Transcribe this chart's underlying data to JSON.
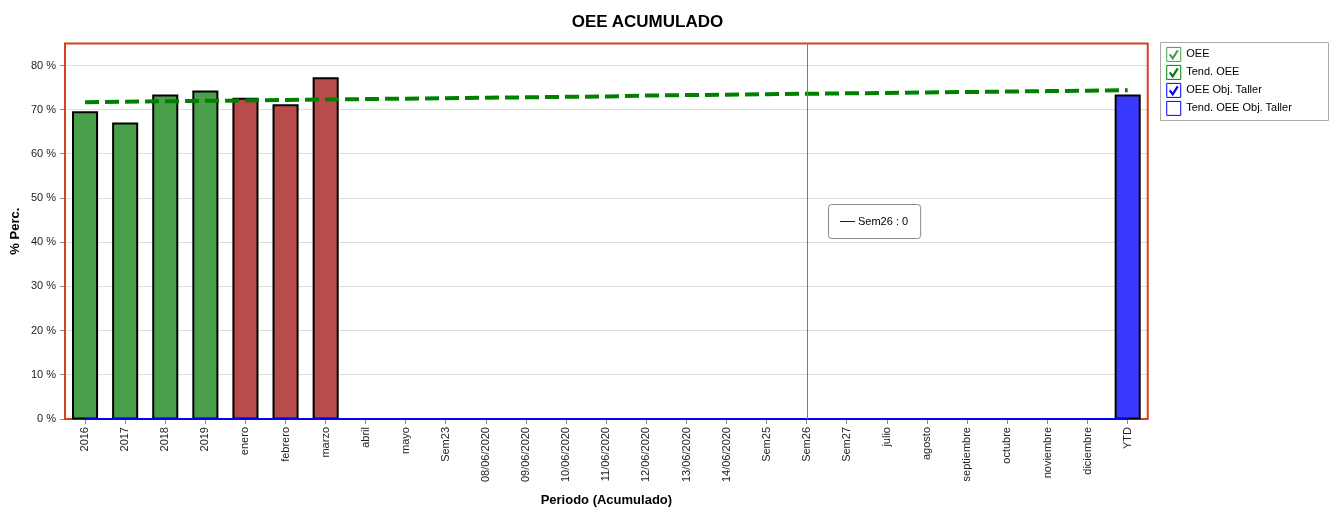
{
  "chart_data": {
    "type": "bar",
    "title": "OEE ACUMULADO",
    "xlabel": "Periodo (Acumulado)",
    "ylabel": "% Perc.",
    "categories": [
      "2016",
      "2017",
      "2018",
      "2019",
      "enero",
      "febrero",
      "marzo",
      "abril",
      "mayo",
      "Sem23",
      "08/06/2020",
      "09/06/2020",
      "10/06/2020",
      "11/06/2020",
      "12/06/2020",
      "13/06/2020",
      "14/06/2020",
      "Sem25",
      "Sem26",
      "Sem27",
      "julio",
      "agosto",
      "septiembre",
      "octubre",
      "noviembre",
      "diciembre",
      "YTD"
    ],
    "series": [
      {
        "name": "OEE",
        "color": "#4aa04a",
        "colors": [
          "#4aa04a",
          "#4aa04a",
          "#4aa04a",
          "#4aa04a",
          "#b84c4c",
          "#b84c4c",
          "#b84c4c",
          null,
          null,
          null,
          null,
          null,
          null,
          null,
          null,
          null,
          null,
          null,
          null,
          null,
          null,
          null,
          null,
          null,
          null,
          null,
          "#3a3aff"
        ],
        "values": [
          69.4,
          66.9,
          73.2,
          74.1,
          72.5,
          71.0,
          77.1,
          null,
          null,
          null,
          null,
          null,
          null,
          null,
          null,
          null,
          null,
          null,
          null,
          null,
          null,
          null,
          null,
          null,
          null,
          null,
          73.2
        ]
      },
      {
        "name": "Tend. OEE",
        "type": "line",
        "color": "#008000",
        "line_style": "dashed",
        "values": [
          71.7,
          71.8,
          71.9,
          72.0,
          72.1,
          72.2,
          72.3,
          72.4,
          72.5,
          72.6,
          72.7,
          72.8,
          72.9,
          73.0,
          73.2,
          73.3,
          73.4,
          73.5,
          73.6,
          73.7,
          73.8,
          73.9,
          74.0,
          74.1,
          74.2,
          74.3,
          74.4
        ]
      },
      {
        "name": "OEE Obj. Taller",
        "type": "line",
        "color": "#0000ff",
        "values": [
          0,
          0,
          0,
          0,
          0,
          0,
          0,
          0,
          0,
          0,
          0,
          0,
          0,
          0,
          0,
          0,
          0,
          0,
          0,
          0,
          0,
          0,
          0,
          0,
          0,
          0,
          0
        ]
      },
      {
        "name": "Tend. OEE Obj. Taller",
        "type": "line",
        "color": "#0000ff",
        "values": [
          null,
          null,
          null,
          null,
          null,
          null,
          null,
          null,
          null,
          null,
          null,
          null,
          null,
          null,
          null,
          null,
          null,
          null,
          null,
          null,
          null,
          null,
          null,
          null,
          null,
          null,
          null
        ]
      }
    ],
    "ylim": [
      0,
      85
    ],
    "yticks": [
      {
        "value": 0,
        "label": "0 %"
      },
      {
        "value": 10,
        "label": "10 %"
      },
      {
        "value": 20,
        "label": "20 %"
      },
      {
        "value": 30,
        "label": "30 %"
      },
      {
        "value": 40,
        "label": "40 %"
      },
      {
        "value": 50,
        "label": "50 %"
      },
      {
        "value": 60,
        "label": "60 %"
      },
      {
        "value": 70,
        "label": "70 %"
      },
      {
        "value": 80,
        "label": "80 %"
      }
    ],
    "grid": "y",
    "legend": "right",
    "marker": "none",
    "ref_lines": [
      {
        "axis": "x",
        "value": "Sem26",
        "color": "#cc44cc"
      }
    ],
    "annotations": [
      "Sem26 : 0"
    ]
  }
}
